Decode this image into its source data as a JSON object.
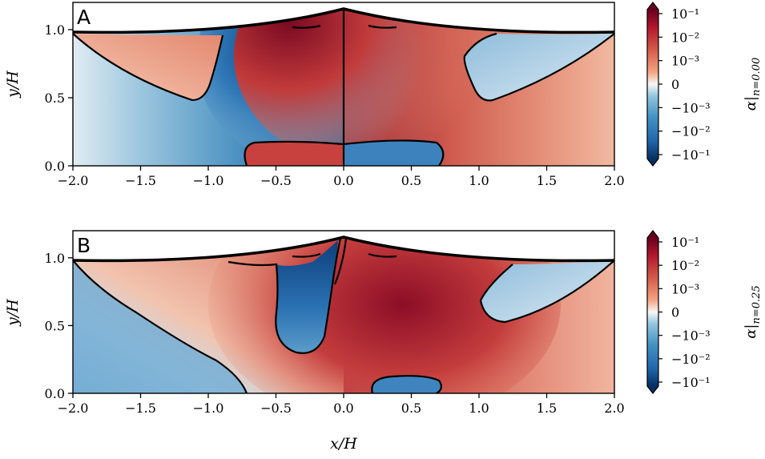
{
  "chart_data": [
    {
      "type": "heatmap",
      "panel_label": "A",
      "xlabel": "",
      "ylabel": "y/H",
      "xlim": [
        -2.0,
        2.0
      ],
      "ylim": [
        0.0,
        1.2
      ],
      "x_ticks": [
        "−2.0",
        "−1.5",
        "−1.0",
        "−0.5",
        "0.0",
        "0.5",
        "1.0",
        "1.5",
        "2.0"
      ],
      "y_ticks": [
        "0.0",
        "0.5",
        "1.0"
      ],
      "colorbar": {
        "label_main": "α",
        "label_sub": "n=0.00",
        "ticks": [
          "10⁻¹",
          "10⁻²",
          "10⁻³",
          "0",
          "−10⁻³",
          "−10⁻²",
          "−10⁻¹"
        ],
        "colormap": "RdBu_r (symlog)"
      }
    },
    {
      "type": "heatmap",
      "panel_label": "B",
      "xlabel": "x/H",
      "ylabel": "y/H",
      "xlim": [
        -2.0,
        2.0
      ],
      "ylim": [
        0.0,
        1.2
      ],
      "x_ticks": [
        "−2.0",
        "−1.5",
        "−1.0",
        "−0.5",
        "0.0",
        "0.5",
        "1.0",
        "1.5",
        "2.0"
      ],
      "y_ticks": [
        "0.0",
        "0.5",
        "1.0"
      ],
      "colorbar": {
        "label_main": "α",
        "label_sub": "n=0.25",
        "ticks": [
          "10⁻¹",
          "10⁻²",
          "10⁻³",
          "0",
          "−10⁻³",
          "−10⁻²",
          "−10⁻¹"
        ],
        "colormap": "RdBu_r (symlog)"
      }
    }
  ],
  "colors": {
    "dark_red": "#67001f",
    "red": "#b2182b",
    "light_red": "#f4a582",
    "white": "#f7f7f7",
    "light_blue": "#92c5de",
    "blue": "#2166ac",
    "dark_blue": "#053061"
  }
}
